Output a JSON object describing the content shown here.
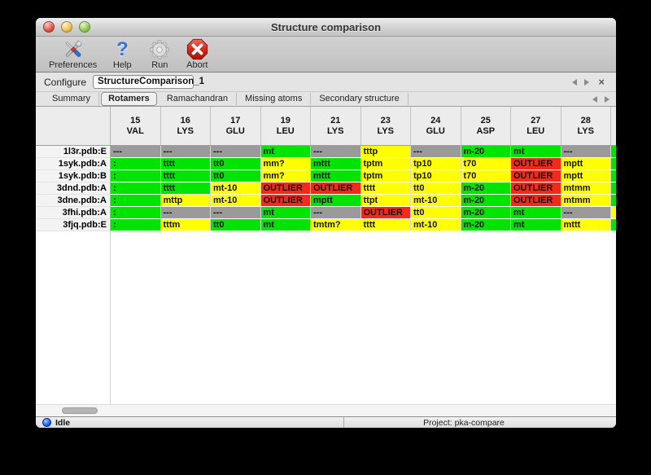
{
  "window": {
    "title": "Structure comparison"
  },
  "toolbar": {
    "items": [
      {
        "label": "Preferences",
        "icon": "tools-icon"
      },
      {
        "label": "Help",
        "icon": "question-icon"
      },
      {
        "label": "Run",
        "icon": "gear-icon"
      },
      {
        "label": "Abort",
        "icon": "stop-icon"
      }
    ]
  },
  "configure": {
    "label": "Configure",
    "value": "StructureComparison_1"
  },
  "tabs": {
    "items": [
      "Summary",
      "Rotamers",
      "Ramachandran",
      "Missing atoms",
      "Secondary structure"
    ],
    "selected": "Rotamers"
  },
  "table": {
    "colors": {
      "green": "#00e400",
      "yellow": "#ffff00",
      "gray": "#9a9a9a",
      "red": "#f5291a"
    },
    "columns": [
      {
        "num": "15",
        "res": "VAL"
      },
      {
        "num": "16",
        "res": "LYS"
      },
      {
        "num": "17",
        "res": "GLU"
      },
      {
        "num": "19",
        "res": "LEU"
      },
      {
        "num": "21",
        "res": "LYS"
      },
      {
        "num": "23",
        "res": "LYS"
      },
      {
        "num": "24",
        "res": "GLU"
      },
      {
        "num": "25",
        "res": "ASP"
      },
      {
        "num": "27",
        "res": "LEU"
      },
      {
        "num": "28",
        "res": "LYS"
      }
    ],
    "rows": [
      {
        "label": "1l3r.pdb:E",
        "partial": "green",
        "cells": [
          {
            "t": "---",
            "c": "gray"
          },
          {
            "t": "---",
            "c": "gray"
          },
          {
            "t": "---",
            "c": "gray"
          },
          {
            "t": "mt",
            "c": "green"
          },
          {
            "t": "---",
            "c": "gray"
          },
          {
            "t": "tttp",
            "c": "yellow"
          },
          {
            "t": "---",
            "c": "gray"
          },
          {
            "t": "m-20",
            "c": "green"
          },
          {
            "t": "mt",
            "c": "green"
          },
          {
            "t": "---",
            "c": "gray"
          }
        ]
      },
      {
        "label": "1syk.pdb:A",
        "partial": "green",
        "cells": [
          {
            "t": ":",
            "c": "green"
          },
          {
            "t": "tttt",
            "c": "green"
          },
          {
            "t": "tt0",
            "c": "green"
          },
          {
            "t": "mm?",
            "c": "yellow"
          },
          {
            "t": "mttt",
            "c": "green"
          },
          {
            "t": "tptm",
            "c": "yellow"
          },
          {
            "t": "tp10",
            "c": "yellow"
          },
          {
            "t": "t70",
            "c": "yellow"
          },
          {
            "t": "OUTLIER",
            "c": "red"
          },
          {
            "t": "mptt",
            "c": "yellow"
          }
        ]
      },
      {
        "label": "1syk.pdb:B",
        "partial": "green",
        "cells": [
          {
            "t": ":",
            "c": "green"
          },
          {
            "t": "tttt",
            "c": "green"
          },
          {
            "t": "tt0",
            "c": "green"
          },
          {
            "t": "mm?",
            "c": "yellow"
          },
          {
            "t": "mttt",
            "c": "green"
          },
          {
            "t": "tptm",
            "c": "yellow"
          },
          {
            "t": "tp10",
            "c": "yellow"
          },
          {
            "t": "t70",
            "c": "yellow"
          },
          {
            "t": "OUTLIER",
            "c": "red"
          },
          {
            "t": "mptt",
            "c": "yellow"
          }
        ]
      },
      {
        "label": "3dnd.pdb:A",
        "partial": "green",
        "cells": [
          {
            "t": ":",
            "c": "green"
          },
          {
            "t": "tttt",
            "c": "green"
          },
          {
            "t": "mt-10",
            "c": "yellow"
          },
          {
            "t": "OUTLIER",
            "c": "red"
          },
          {
            "t": "OUTLIER",
            "c": "red"
          },
          {
            "t": "tttt",
            "c": "yellow"
          },
          {
            "t": "tt0",
            "c": "yellow"
          },
          {
            "t": "m-20",
            "c": "green"
          },
          {
            "t": "OUTLIER",
            "c": "red"
          },
          {
            "t": "mtmm",
            "c": "yellow"
          }
        ]
      },
      {
        "label": "3dne.pdb:A",
        "partial": "green",
        "cells": [
          {
            "t": ":",
            "c": "green"
          },
          {
            "t": "mttp",
            "c": "yellow"
          },
          {
            "t": "mt-10",
            "c": "yellow"
          },
          {
            "t": "OUTLIER",
            "c": "red"
          },
          {
            "t": "mptt",
            "c": "green"
          },
          {
            "t": "ttpt",
            "c": "yellow"
          },
          {
            "t": "mt-10",
            "c": "yellow"
          },
          {
            "t": "m-20",
            "c": "green"
          },
          {
            "t": "OUTLIER",
            "c": "red"
          },
          {
            "t": "mtmm",
            "c": "yellow"
          }
        ]
      },
      {
        "label": "3fhi.pdb:A",
        "partial": "yellow",
        "cells": [
          {
            "t": ":",
            "c": "green"
          },
          {
            "t": "---",
            "c": "gray"
          },
          {
            "t": "---",
            "c": "gray"
          },
          {
            "t": "mt",
            "c": "green"
          },
          {
            "t": "---",
            "c": "gray"
          },
          {
            "t": "OUTLIER",
            "c": "red"
          },
          {
            "t": "tt0",
            "c": "yellow"
          },
          {
            "t": "m-20",
            "c": "green"
          },
          {
            "t": "mt",
            "c": "green"
          },
          {
            "t": "---",
            "c": "gray"
          }
        ]
      },
      {
        "label": "3fjq.pdb:E",
        "partial": "green",
        "cells": [
          {
            "t": ":",
            "c": "green"
          },
          {
            "t": "tttm",
            "c": "yellow"
          },
          {
            "t": "tt0",
            "c": "green"
          },
          {
            "t": "mt",
            "c": "green"
          },
          {
            "t": "tmtm?",
            "c": "yellow"
          },
          {
            "t": "tttt",
            "c": "yellow"
          },
          {
            "t": "mt-10",
            "c": "yellow"
          },
          {
            "t": "m-20",
            "c": "green"
          },
          {
            "t": "mt",
            "c": "green"
          },
          {
            "t": "mttt",
            "c": "yellow"
          }
        ]
      }
    ]
  },
  "status": {
    "idle_label": "Idle",
    "project_label": "Project: pka-compare"
  }
}
